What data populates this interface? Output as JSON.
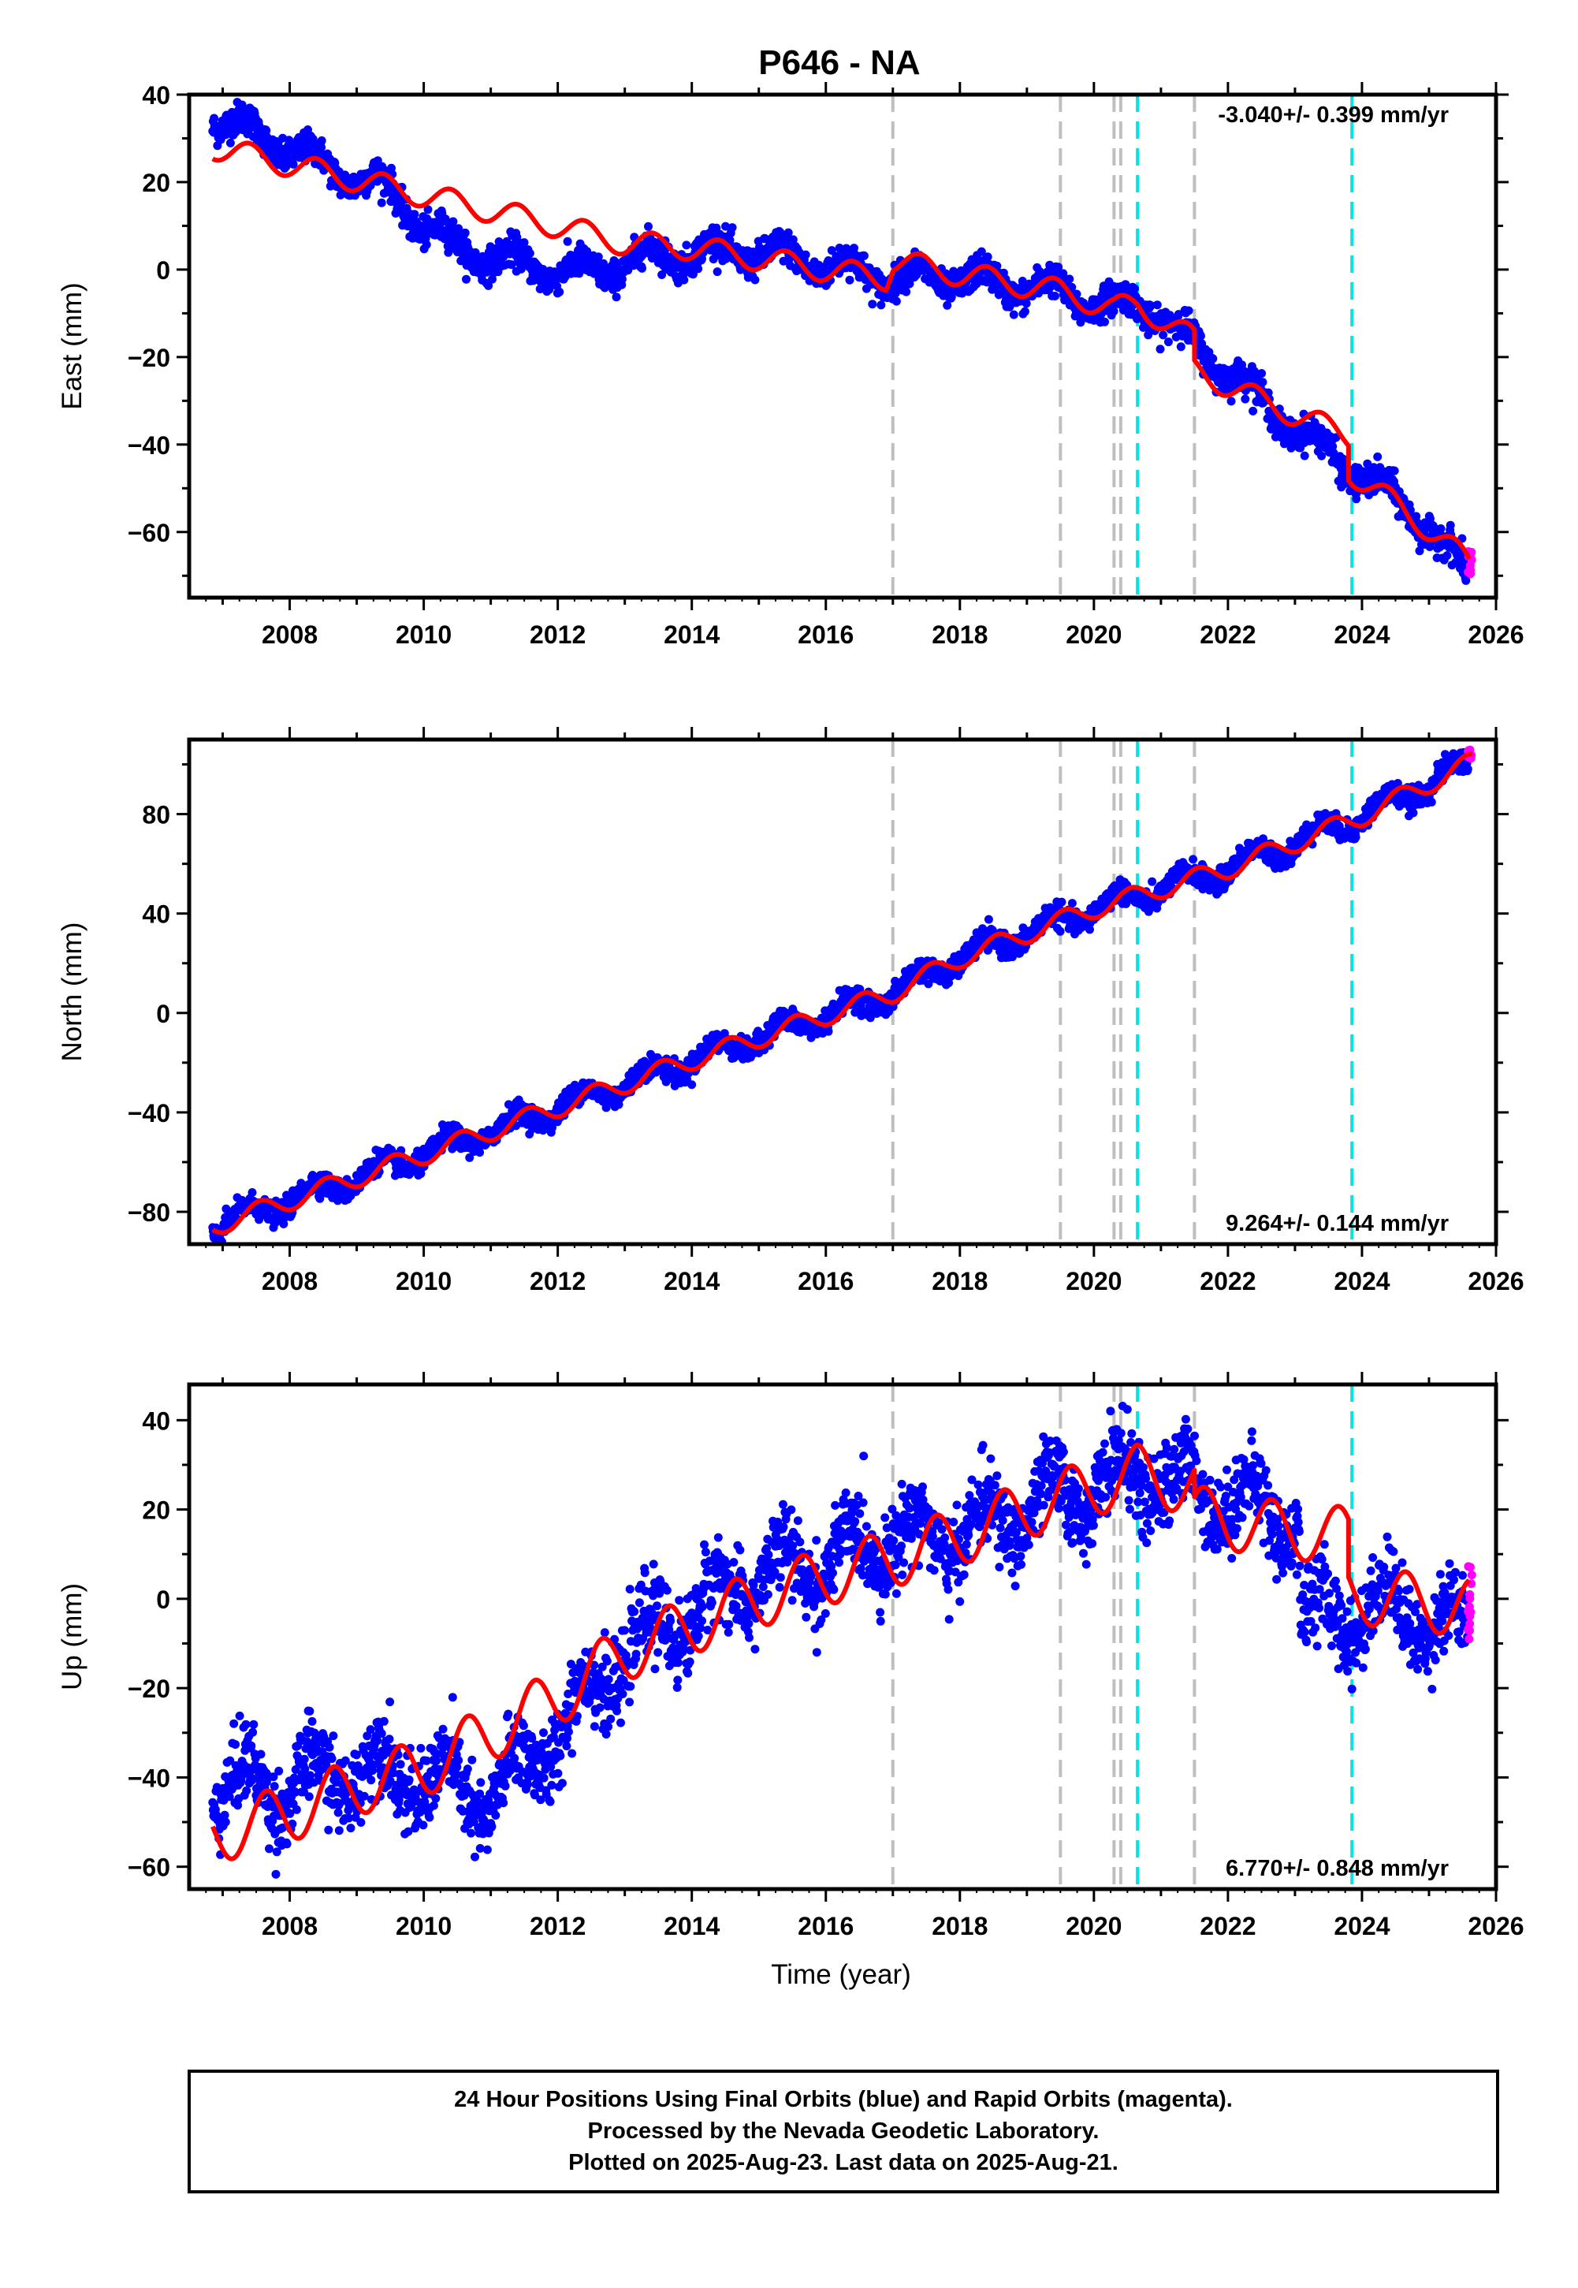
{
  "title": "P646 - NA",
  "xlabel": "Time (year)",
  "colors": {
    "final": "#0000ff",
    "rapid": "#ff00ff",
    "model": "#ff0000",
    "event_gray": "#bfbfbf",
    "event_cyan": "#00e5e5"
  },
  "chart_data": [
    {
      "type": "scatter",
      "component": "East",
      "ylabel": "East (mm)",
      "xlim": [
        2006.5,
        2026.0
      ],
      "ylim": [
        -75,
        40
      ],
      "xticks": [
        2008,
        2010,
        2012,
        2014,
        2016,
        2018,
        2020,
        2022,
        2024,
        2026
      ],
      "yticks": [
        40,
        20,
        0,
        -20,
        -40,
        -60
      ],
      "rate": "-3.040+/- 0.399 mm/yr",
      "rate_position": "top-right",
      "gray_lines": [
        2017.0,
        2019.5,
        2020.3,
        2020.4,
        2021.5
      ],
      "cyan_lines": [
        2020.65,
        2023.85
      ],
      "model": {
        "anchors": [
          [
            2006.85,
            28
          ],
          [
            2010.0,
            17
          ],
          [
            2012.0,
            10
          ],
          [
            2013.0,
            6
          ],
          [
            2014.0,
            5
          ],
          [
            2016.0,
            0
          ],
          [
            2016.9,
            -2
          ],
          [
            2017.0,
            2
          ],
          [
            2018.0,
            -1
          ],
          [
            2019.5,
            -5
          ],
          [
            2020.3,
            -9
          ],
          [
            2020.65,
            -8
          ],
          [
            2021.5,
            -16
          ],
          [
            2021.5,
            -23
          ],
          [
            2022.5,
            -30
          ],
          [
            2023.8,
            -38
          ],
          [
            2023.8,
            -46
          ],
          [
            2024.8,
            -57
          ],
          [
            2025.6,
            -67
          ]
        ],
        "amplitude": 2.8,
        "phase": 0.15
      },
      "final": {
        "start": 2006.85,
        "end": 2025.58,
        "anchors": [
          [
            2006.85,
            35
          ],
          [
            2007.5,
            31
          ],
          [
            2008.5,
            24
          ],
          [
            2009.5,
            18
          ],
          [
            2010.0,
            10
          ],
          [
            2010.5,
            5
          ],
          [
            2011.5,
            1
          ],
          [
            2012.5,
            -1
          ],
          [
            2013.0,
            2
          ],
          [
            2014.0,
            4
          ],
          [
            2015.0,
            4
          ],
          [
            2016.0,
            1
          ],
          [
            2017.0,
            -2
          ],
          [
            2018.0,
            -2
          ],
          [
            2019.5,
            -5
          ],
          [
            2020.3,
            -9
          ],
          [
            2020.65,
            -7
          ],
          [
            2021.5,
            -17
          ],
          [
            2022.5,
            -30
          ],
          [
            2023.3,
            -40
          ],
          [
            2023.8,
            -45
          ],
          [
            2024.8,
            -56
          ],
          [
            2025.58,
            -70
          ]
        ],
        "amplitude": 2.8,
        "noise": 1.8
      },
      "rapid": {
        "start": 2025.58,
        "end": 2025.64,
        "y": -67,
        "spread": 3
      }
    },
    {
      "type": "scatter",
      "component": "North",
      "ylabel": "North (mm)",
      "xlim": [
        2006.5,
        2026.0
      ],
      "ylim": [
        -93,
        110
      ],
      "xticks": [
        2008,
        2010,
        2012,
        2014,
        2016,
        2018,
        2020,
        2022,
        2024,
        2026
      ],
      "yticks": [
        80,
        40,
        0,
        -40,
        -80
      ],
      "rate": "9.264+/- 0.144 mm/yr",
      "rate_position": "bottom-right",
      "gray_lines": [
        2017.0,
        2019.5,
        2020.3,
        2020.4,
        2021.5
      ],
      "cyan_lines": [
        2020.65,
        2023.85
      ],
      "model": {
        "anchors": [
          [
            2006.85,
            -86
          ],
          [
            2010.0,
            -57
          ],
          [
            2012.0,
            -38
          ],
          [
            2014.0,
            -19
          ],
          [
            2016.0,
            -1
          ],
          [
            2017.0,
            8
          ],
          [
            2018.0,
            22
          ],
          [
            2020.0,
            42
          ],
          [
            2022.0,
            58
          ],
          [
            2024.0,
            79
          ],
          [
            2025.65,
            101
          ]
        ],
        "amplitude": 4.0,
        "phase": 0.3
      },
      "final": {
        "start": 2006.85,
        "end": 2025.58,
        "anchors": [
          [
            2006.85,
            -86
          ],
          [
            2010.0,
            -57
          ],
          [
            2012.0,
            -38
          ],
          [
            2014.0,
            -19
          ],
          [
            2016.0,
            -1
          ],
          [
            2017.0,
            8
          ],
          [
            2018.0,
            22
          ],
          [
            2020.0,
            42
          ],
          [
            2022.0,
            58
          ],
          [
            2024.0,
            79
          ],
          [
            2025.58,
            100
          ]
        ],
        "amplitude": 4.0,
        "noise": 2.2
      },
      "rapid": {
        "start": 2025.58,
        "end": 2025.64,
        "y": 104,
        "spread": 2
      }
    },
    {
      "type": "scatter",
      "component": "Up",
      "ylabel": "Up (mm)",
      "xlim": [
        2006.5,
        2026.0
      ],
      "ylim": [
        -65,
        48
      ],
      "xticks": [
        2008,
        2010,
        2012,
        2014,
        2016,
        2018,
        2020,
        2022,
        2024,
        2026
      ],
      "yticks": [
        40,
        20,
        0,
        -20,
        -40,
        -60
      ],
      "rate": "6.770+/- 0.848 mm/yr",
      "rate_position": "bottom-right",
      "gray_lines": [
        2017.0,
        2019.5,
        2020.3,
        2020.4,
        2021.5
      ],
      "cyan_lines": [
        2020.65,
        2023.85
      ],
      "model": {
        "anchors": [
          [
            2006.85,
            -53
          ],
          [
            2008.0,
            -48
          ],
          [
            2009.0,
            -42
          ],
          [
            2010.0,
            -38
          ],
          [
            2011.0,
            -30
          ],
          [
            2012.0,
            -22
          ],
          [
            2013.0,
            -12
          ],
          [
            2014.0,
            -6
          ],
          [
            2015.0,
            0
          ],
          [
            2016.0,
            5
          ],
          [
            2017.0,
            9
          ],
          [
            2018.0,
            14
          ],
          [
            2019.0,
            20
          ],
          [
            2020.0,
            25
          ],
          [
            2020.65,
            28
          ],
          [
            2021.5,
            25
          ],
          [
            2021.5,
            19
          ],
          [
            2022.5,
            16
          ],
          [
            2023.8,
            14
          ],
          [
            2023.8,
            1
          ],
          [
            2025.6,
            -2
          ]
        ],
        "amplitude": 6.5,
        "phase": 0.4
      },
      "final": {
        "start": 2006.85,
        "end": 2025.58,
        "anchors": [
          [
            2006.85,
            -42
          ],
          [
            2008.0,
            -42
          ],
          [
            2009.0,
            -38
          ],
          [
            2010.0,
            -40
          ],
          [
            2011.0,
            -45
          ],
          [
            2012.0,
            -30
          ],
          [
            2013.0,
            -12
          ],
          [
            2014.0,
            -3
          ],
          [
            2015.0,
            5
          ],
          [
            2016.0,
            8
          ],
          [
            2017.0,
            14
          ],
          [
            2018.0,
            14
          ],
          [
            2019.0,
            20
          ],
          [
            2020.0,
            25
          ],
          [
            2020.65,
            28
          ],
          [
            2021.5,
            25
          ],
          [
            2022.5,
            20
          ],
          [
            2023.05,
            18
          ],
          [
            2023.1,
            -5
          ],
          [
            2023.8,
            -3
          ],
          [
            2024.5,
            -2
          ],
          [
            2025.58,
            -8
          ]
        ],
        "amplitude": 6.0,
        "noise": 4.5
      },
      "rapid": {
        "start": 2025.58,
        "end": 2025.64,
        "y": 0,
        "spread": 9
      }
    }
  ],
  "footer": {
    "line1": "24 Hour Positions Using Final Orbits (blue) and Rapid Orbits (magenta).",
    "line2": "Processed by the Nevada Geodetic Laboratory.",
    "line3": "Plotted on 2025-Aug-23. Last data on 2025-Aug-21."
  }
}
